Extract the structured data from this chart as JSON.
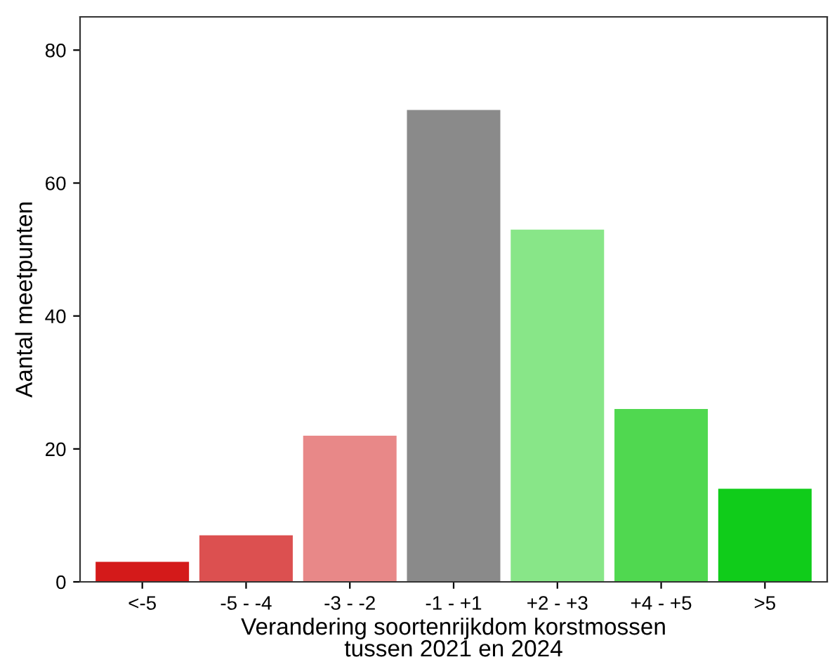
{
  "chart_data": {
    "type": "bar",
    "categories": [
      "<-5",
      "-5 - -4",
      "-3 - -2",
      "-1 - +1",
      "+2 - +3",
      "+4 - +5",
      ">5"
    ],
    "values": [
      3,
      7,
      22,
      71,
      53,
      26,
      14
    ],
    "colors": [
      "#d41a1a",
      "#dc5050",
      "#e88888",
      "#8a8a8a",
      "#88e688",
      "#50d850",
      "#10cc1a"
    ],
    "xlabel": "Verandering soortenrijkdom korstmossen\ntussen 2021 en 2024",
    "ylabel": "Aantal meetpunten",
    "ylim": [
      0,
      85
    ],
    "yticks": [
      0,
      20,
      40,
      60,
      80
    ],
    "grid": false,
    "legend": false
  }
}
